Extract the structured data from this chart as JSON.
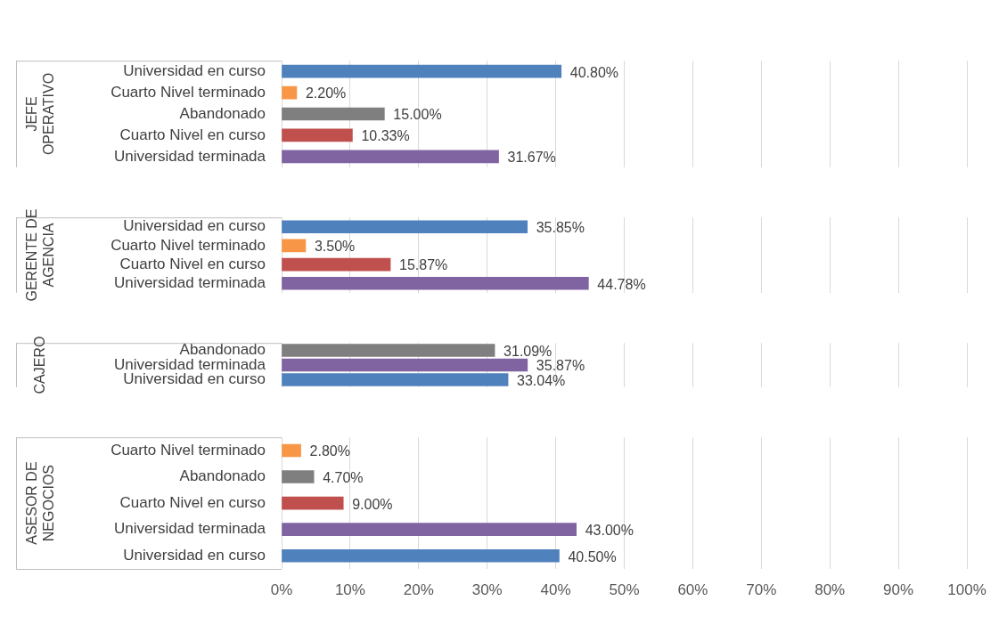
{
  "chart_data": [
    {
      "type": "bar",
      "orientation": "horizontal",
      "title": "JEFE OPERATIVO",
      "categories": [
        "Universidad en curso",
        "Cuarto Nivel terminado",
        "Abandonado",
        "Cuarto Nivel en curso",
        "Universidad terminada"
      ],
      "values": [
        40.8,
        2.2,
        15,
        10.33,
        31.67
      ],
      "colors": [
        "#4f81bd",
        "#f79646",
        "#7f7f7f",
        "#c0504d",
        "#8064a2"
      ],
      "value_labels": [
        "40.80%",
        "2.20%",
        "15.00%",
        "10.33%",
        "31.67%"
      ],
      "xlim": [
        0,
        100
      ],
      "grid": "x",
      "tick_labels": "y"
    },
    {
      "type": "bar",
      "orientation": "horizontal",
      "title": "GERENTE DE AGENCIA",
      "categories": [
        "Universidad en curso",
        "Cuarto Nivel terminado",
        "Cuarto Nivel en curso",
        "Universidad terminada"
      ],
      "values": [
        35.85,
        3.5,
        15.87,
        44.78
      ],
      "colors": [
        "#4f81bd",
        "#f79646",
        "#c0504d",
        "#8064a2"
      ],
      "value_labels": [
        "35.85%",
        "3.50%",
        "15.87%",
        "44.78%"
      ],
      "xlim": [
        0,
        100
      ],
      "grid": "x",
      "tick_labels": "y"
    },
    {
      "type": "bar",
      "orientation": "horizontal",
      "title": "CAJERO",
      "categories": [
        "Abandonado",
        "Universidad terminada",
        "Universidad en curso"
      ],
      "values": [
        31.09,
        35.87,
        33.04
      ],
      "colors": [
        "#7f7f7f",
        "#8064a2",
        "#4f81bd"
      ],
      "value_labels": [
        "31.09%",
        "35.87%",
        "33.04%"
      ],
      "xlim": [
        0,
        100
      ],
      "grid": "x",
      "tick_labels": "y"
    },
    {
      "type": "bar",
      "orientation": "horizontal",
      "title": "ASESOR DE NEGOCIOS",
      "categories": [
        "Cuarto Nivel terminado",
        "Abandonado",
        "Cuarto Nivel en curso",
        "Universidad terminada",
        "Universidad en curso"
      ],
      "values": [
        2.8,
        4.7,
        9,
        43,
        40.5
      ],
      "colors": [
        "#f79646",
        "#7f7f7f",
        "#c0504d",
        "#8064a2",
        "#4f81bd"
      ],
      "value_labels": [
        "2.80%",
        "4.70%",
        "9.00%",
        "43.00%",
        "40.50%"
      ],
      "xlim": [
        0,
        100
      ],
      "xticks": [
        {
          "value": 0,
          "label": "0%"
        },
        {
          "value": 10,
          "label": "10%"
        },
        {
          "value": 20,
          "label": "20%"
        },
        {
          "value": 30,
          "label": "30%"
        },
        {
          "value": 40,
          "label": "40%"
        },
        {
          "value": 50,
          "label": "50%"
        },
        {
          "value": 60,
          "label": "60%"
        },
        {
          "value": 70,
          "label": "70%"
        },
        {
          "value": 80,
          "label": "80%"
        },
        {
          "value": 90,
          "label": "90%"
        },
        {
          "value": 100,
          "label": "100%"
        }
      ],
      "grid": "x"
    }
  ]
}
